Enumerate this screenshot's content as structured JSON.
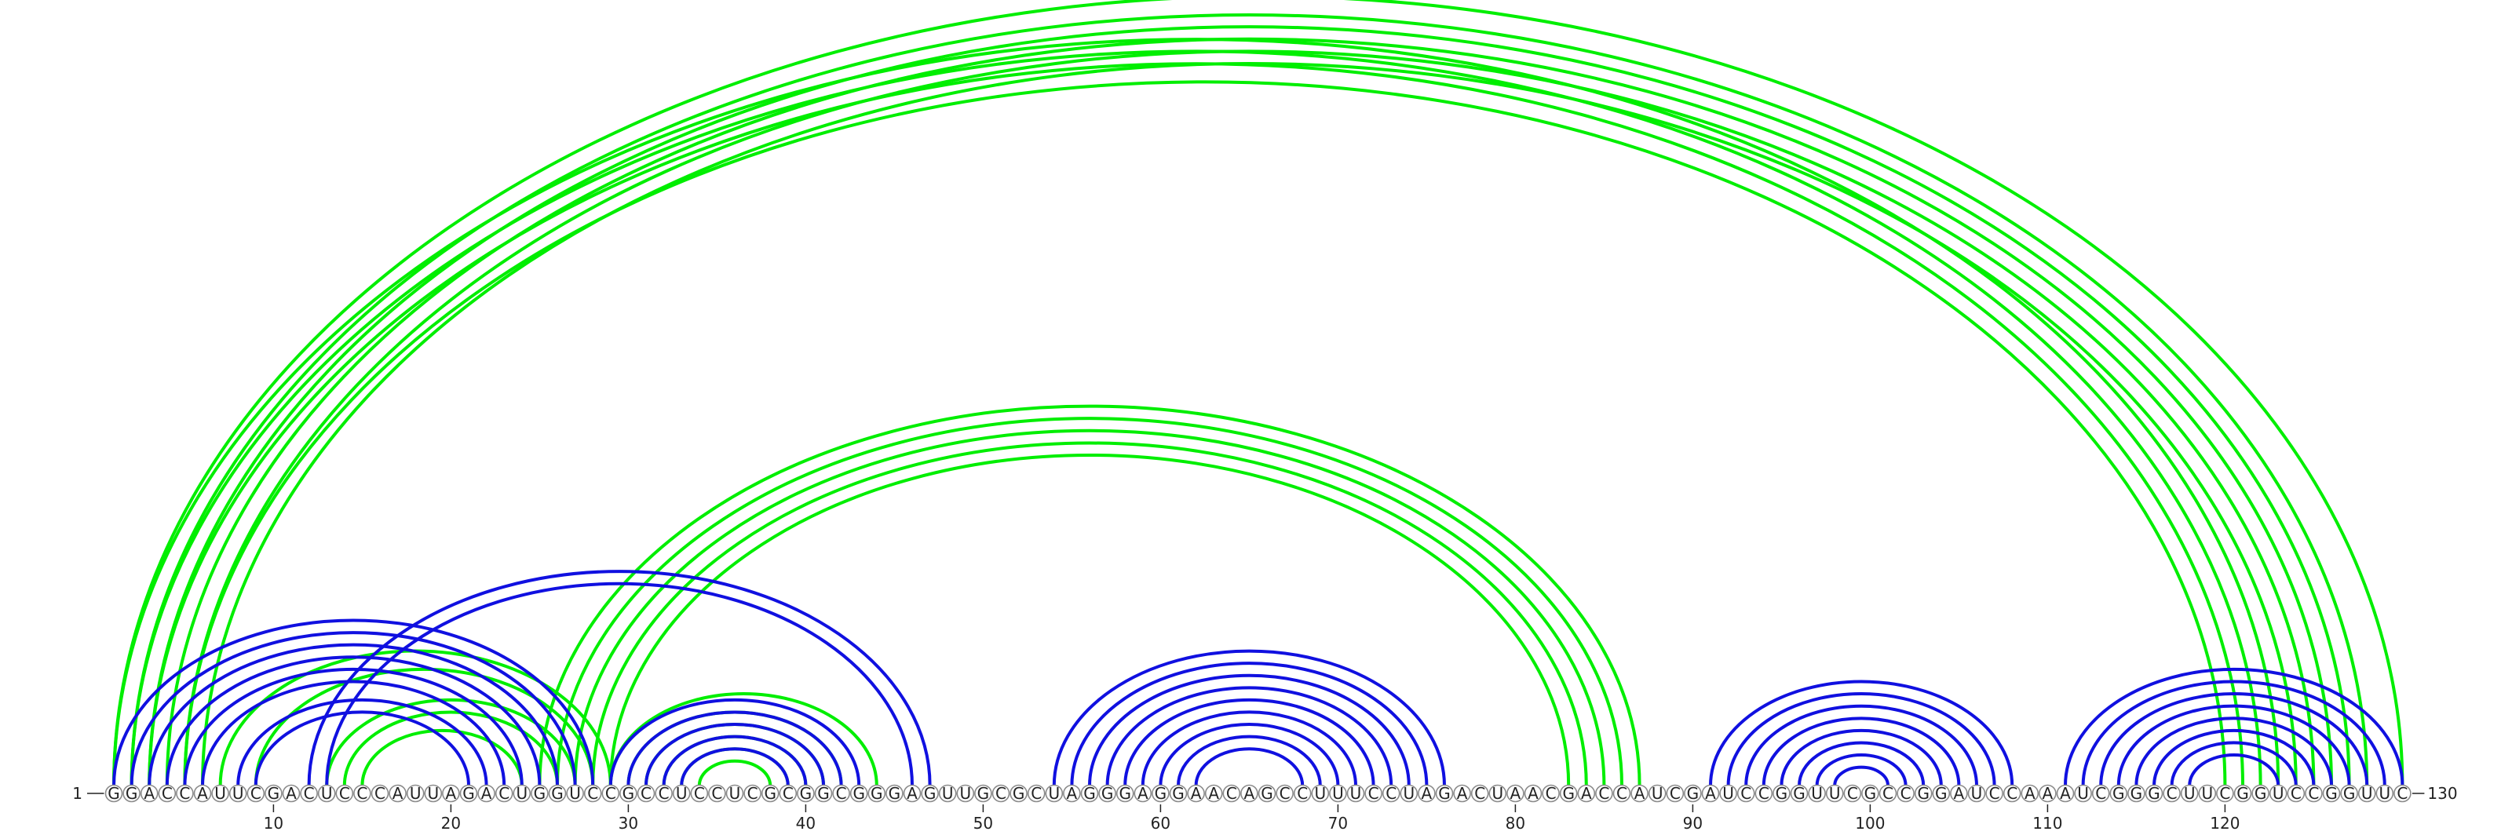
{
  "diagram": {
    "type": "rna-arc-diagram",
    "sequence": "GGACCAUUCGACUCCCAUUAGACUGGUCCGCCUCCUCGCGGCGGGAGUUGCGCUAGGGAGGAACAGCCUUUCCUAGACUAACGACCAUCGAUCCGGUUCGCCGGAUCCAAAUCGGGCUUCGGUCCGGUUC",
    "start_label": "1",
    "end_label": "130",
    "tick_labels": [
      "10",
      "20",
      "30",
      "40",
      "50",
      "60",
      "70",
      "80",
      "90",
      "100",
      "110",
      "120"
    ],
    "colors": {
      "green": "#00ee00",
      "blue": "#1010e0",
      "base_outline": "#8a8a8a"
    },
    "helices": [
      {
        "color": "green",
        "pairs": [
          [
            1,
            123
          ],
          [
            2,
            122
          ],
          [
            3,
            121
          ],
          [
            5,
            120
          ]
        ]
      },
      {
        "color": "green",
        "pairs": [
          [
            1,
            130
          ],
          [
            2,
            128
          ],
          [
            3,
            127
          ],
          [
            4,
            126
          ],
          [
            5,
            125
          ],
          [
            6,
            124
          ]
        ]
      },
      {
        "color": "green",
        "pairs": [
          [
            27,
            85
          ],
          [
            28,
            84
          ],
          [
            29,
            83
          ]
        ]
      },
      {
        "color": "green",
        "pairs": [
          [
            25,
            87
          ],
          [
            26,
            86
          ]
        ]
      },
      {
        "color": "green",
        "pairs": [
          [
            7,
            29
          ],
          [
            9,
            28
          ],
          [
            13,
            27
          ],
          [
            14,
            26
          ],
          [
            15,
            24
          ]
        ]
      },
      {
        "color": "green",
        "pairs": [
          [
            29,
            44
          ],
          [
            30,
            42
          ],
          [
            31,
            41
          ],
          [
            32,
            40
          ],
          [
            33,
            39
          ],
          [
            34,
            38
          ]
        ]
      },
      {
        "color": "blue",
        "pairs": [
          [
            1,
            28
          ],
          [
            2,
            27
          ],
          [
            3,
            26
          ],
          [
            4,
            25
          ],
          [
            5,
            24
          ],
          [
            6,
            23
          ],
          [
            8,
            22
          ],
          [
            9,
            21
          ]
        ]
      },
      {
        "color": "blue",
        "pairs": [
          [
            12,
            47
          ],
          [
            13,
            46
          ]
        ]
      },
      {
        "color": "blue",
        "pairs": [
          [
            29,
            43
          ],
          [
            30,
            42
          ],
          [
            31,
            41
          ],
          [
            32,
            40
          ],
          [
            33,
            39
          ]
        ]
      },
      {
        "color": "blue",
        "pairs": [
          [
            54,
            76
          ],
          [
            55,
            75
          ],
          [
            56,
            74
          ],
          [
            57,
            73
          ],
          [
            58,
            72
          ],
          [
            59,
            71
          ],
          [
            60,
            70
          ],
          [
            61,
            69
          ],
          [
            62,
            68
          ]
        ]
      },
      {
        "color": "blue",
        "pairs": [
          [
            91,
            108
          ],
          [
            92,
            107
          ],
          [
            93,
            106
          ],
          [
            94,
            105
          ],
          [
            95,
            104
          ],
          [
            96,
            103
          ],
          [
            97,
            102
          ],
          [
            98,
            101
          ]
        ]
      },
      {
        "color": "blue",
        "pairs": [
          [
            111,
            130
          ],
          [
            112,
            129
          ],
          [
            113,
            128
          ],
          [
            114,
            127
          ],
          [
            115,
            126
          ],
          [
            116,
            125
          ],
          [
            117,
            124
          ],
          [
            118,
            123
          ]
        ]
      }
    ]
  }
}
